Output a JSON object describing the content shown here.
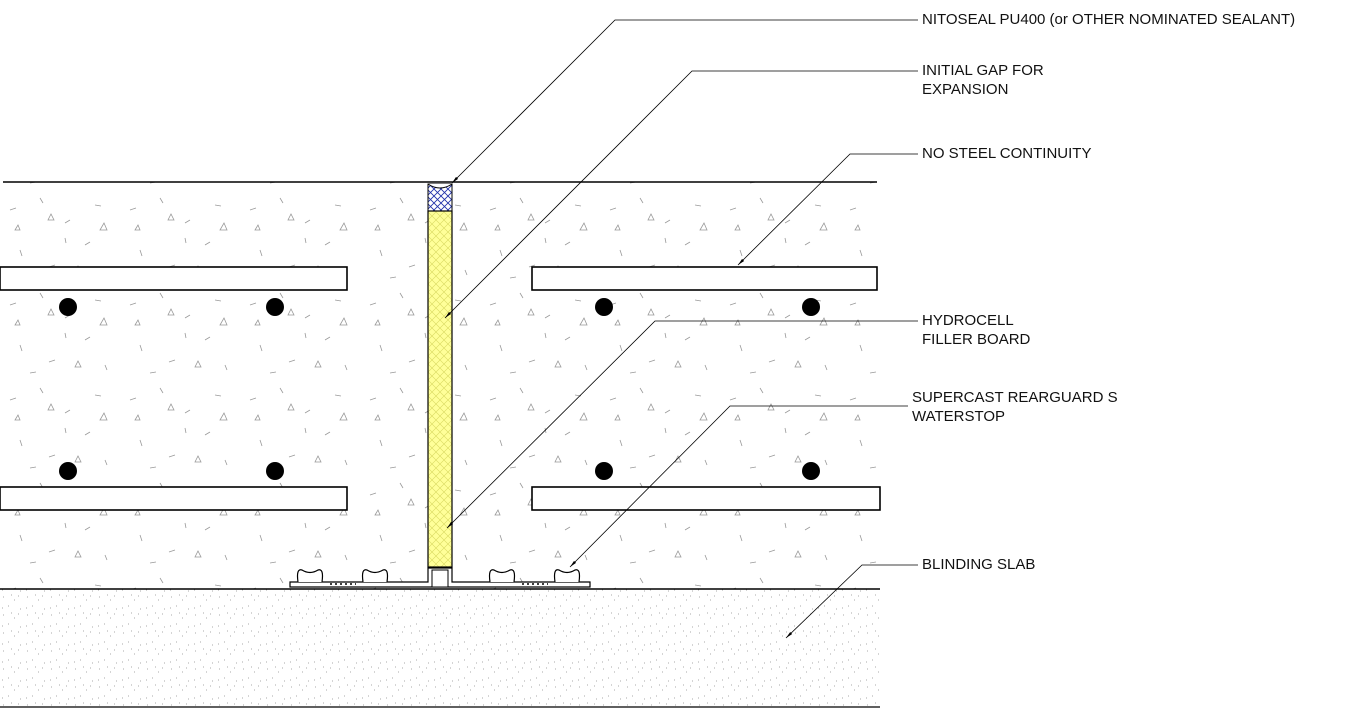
{
  "labels": [
    {
      "lines": [
        "NITOSEAL PU400 (or OTHER NOMINATED SEALANT)"
      ]
    },
    {
      "lines": [
        "INITIAL GAP FOR",
        "EXPANSION"
      ]
    },
    {
      "lines": [
        "NO STEEL CONTINUITY"
      ]
    },
    {
      "lines": [
        "HYDROCELL",
        "FILLER BOARD"
      ]
    },
    {
      "lines": [
        "SUPERCAST REARGUARD S",
        "WATERSTOP"
      ]
    },
    {
      "lines": [
        "BLINDING SLAB"
      ]
    }
  ]
}
